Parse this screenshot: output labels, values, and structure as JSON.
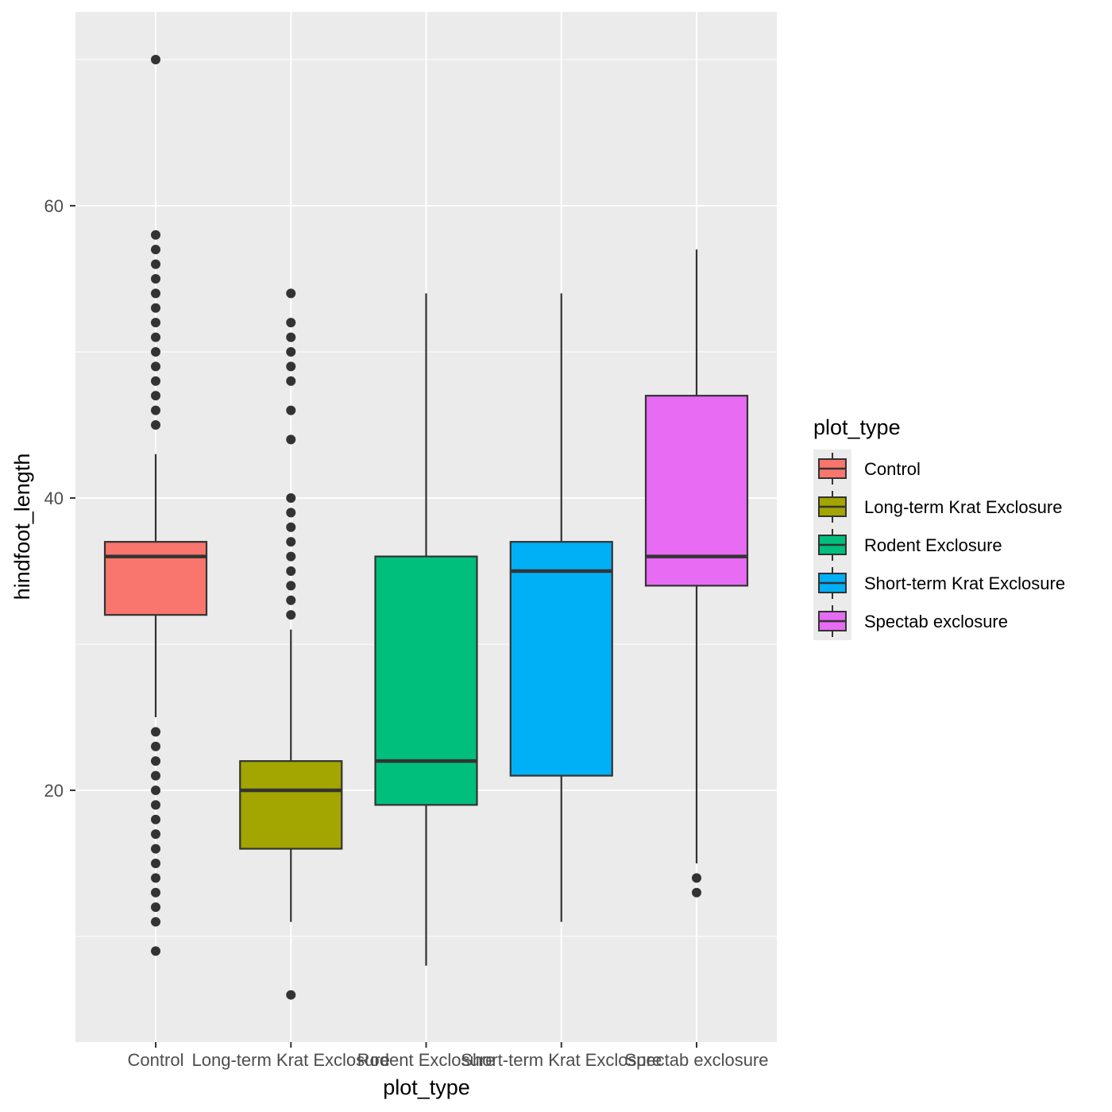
{
  "chart_data": {
    "type": "boxplot",
    "xlabel": "plot_type",
    "ylabel": "hindfoot_length",
    "ylim": [
      2.77,
      73.26
    ],
    "yticks": [
      20,
      40,
      60
    ],
    "ytick_labels": [
      "20",
      "40",
      "60"
    ],
    "grid": true,
    "legend": {
      "title": "plot_type",
      "placement": "right"
    },
    "categories": [
      "Control",
      "Long-term Krat Exclosure",
      "Rodent Exclosure",
      "Short-term Krat Exclosure",
      "Spectab exclosure"
    ],
    "colors": [
      "#F8766D",
      "#A3A500",
      "#00BF7D",
      "#00B0F6",
      "#E76BF3"
    ],
    "boxes": [
      {
        "name": "Control",
        "q1": 32,
        "median": 36,
        "q3": 37,
        "whisker_low": 25,
        "whisker_high": 43,
        "outliers": [
          70,
          58,
          57,
          56,
          55,
          54,
          53,
          52,
          51,
          50,
          49,
          48,
          47,
          46,
          45,
          24,
          23,
          22,
          21,
          20,
          19,
          18,
          17,
          16,
          15,
          14,
          13,
          12,
          11,
          9
        ]
      },
      {
        "name": "Long-term Krat Exclosure",
        "q1": 16,
        "median": 20,
        "q3": 22,
        "whisker_low": 11,
        "whisker_high": 31,
        "outliers": [
          54,
          52,
          51,
          50,
          49,
          48,
          46,
          44,
          40,
          39,
          38,
          37,
          36,
          35,
          34,
          33,
          32,
          6
        ]
      },
      {
        "name": "Rodent Exclosure",
        "q1": 19,
        "median": 22,
        "q3": 36,
        "whisker_low": 8,
        "whisker_high": 54,
        "outliers": []
      },
      {
        "name": "Short-term Krat Exclosure",
        "q1": 21,
        "median": 35,
        "q3": 37,
        "whisker_low": 11,
        "whisker_high": 54,
        "outliers": []
      },
      {
        "name": "Spectab exclosure",
        "q1": 34,
        "median": 36,
        "q3": 47,
        "whisker_low": 15,
        "whisker_high": 57,
        "outliers": [
          14,
          13
        ]
      }
    ]
  }
}
